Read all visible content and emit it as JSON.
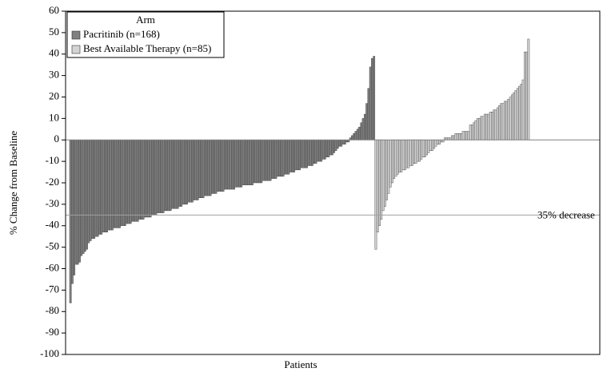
{
  "chart_data": {
    "type": "waterfall",
    "xlabel": "Patients",
    "ylabel": "% Change from Baseline",
    "ylim": [
      -100,
      60
    ],
    "yticks": [
      -100,
      -90,
      -80,
      -70,
      -60,
      -50,
      -40,
      -30,
      -20,
      -10,
      0,
      10,
      20,
      30,
      40,
      50,
      60
    ],
    "legend": {
      "title": "Arm",
      "position": "upper left"
    },
    "reference_line": {
      "value": -35,
      "label": "35% decrease",
      "color": "#a0a0a0"
    },
    "series": [
      {
        "name": "Pacritinib (n=168)",
        "color": "#808080",
        "values": [
          -76,
          -67,
          -63,
          -58,
          -58,
          -57,
          -54,
          -53,
          -52,
          -51,
          -48,
          -47,
          -46,
          -46,
          -45,
          -45,
          -44,
          -44,
          -43,
          -43,
          -43,
          -42,
          -42,
          -42,
          -41,
          -41,
          -41,
          -41,
          -40,
          -40,
          -40,
          -39,
          -39,
          -39,
          -38,
          -38,
          -38,
          -38,
          -37,
          -37,
          -37,
          -36,
          -36,
          -36,
          -36,
          -35,
          -35,
          -35,
          -34,
          -34,
          -34,
          -34,
          -33,
          -33,
          -33,
          -33,
          -32,
          -32,
          -32,
          -32,
          -31,
          -31,
          -30,
          -30,
          -30,
          -29,
          -29,
          -29,
          -28,
          -28,
          -28,
          -27,
          -27,
          -27,
          -26,
          -26,
          -26,
          -26,
          -25,
          -25,
          -25,
          -24,
          -24,
          -24,
          -24,
          -23,
          -23,
          -23,
          -23,
          -23,
          -23,
          -22,
          -22,
          -22,
          -22,
          -21,
          -21,
          -21,
          -21,
          -21,
          -21,
          -20,
          -20,
          -20,
          -20,
          -20,
          -19,
          -19,
          -19,
          -19,
          -19,
          -18,
          -18,
          -18,
          -17,
          -17,
          -17,
          -17,
          -16,
          -16,
          -16,
          -15,
          -15,
          -15,
          -14,
          -14,
          -14,
          -13,
          -13,
          -13,
          -13,
          -12,
          -12,
          -12,
          -11,
          -11,
          -10,
          -10,
          -10,
          -9,
          -9,
          -8,
          -8,
          -7,
          -7,
          -6,
          -5,
          -4,
          -3,
          -3,
          -2,
          -2,
          -1,
          -1,
          1,
          2,
          3,
          4,
          5,
          6,
          8,
          10,
          12,
          17,
          24,
          34,
          38,
          39
        ]
      },
      {
        "name": "Best Available Therapy (n=85)",
        "color": "#d4d4d4",
        "values": [
          -51,
          -43,
          -40,
          -37,
          -33,
          -31,
          -28,
          -25,
          -22,
          -20,
          -18,
          -17,
          -16,
          -15,
          -15,
          -14,
          -14,
          -13,
          -13,
          -12,
          -12,
          -11,
          -11,
          -10,
          -10,
          -9,
          -8,
          -8,
          -7,
          -6,
          -5,
          -5,
          -4,
          -3,
          -2,
          -2,
          -1,
          -1,
          1,
          1,
          1,
          1,
          2,
          2,
          3,
          3,
          3,
          3,
          4,
          4,
          4,
          4,
          7,
          7,
          8,
          9,
          10,
          10,
          11,
          11,
          12,
          12,
          12,
          13,
          13,
          14,
          14,
          15,
          16,
          17,
          17,
          18,
          18,
          19,
          20,
          21,
          22,
          23,
          24,
          25,
          26,
          28,
          41,
          41,
          47
        ]
      }
    ]
  }
}
